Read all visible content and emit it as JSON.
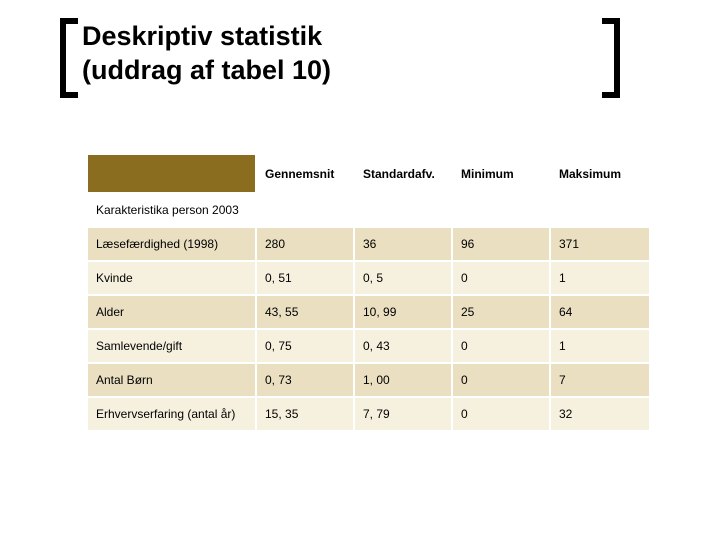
{
  "title": {
    "line1": "Deskriptiv statistik",
    "line2": "(uddrag af tabel 10)"
  },
  "table": {
    "header_first_bg": "#8a6d1e",
    "row_odd_bg": "#eadfc1",
    "row_even_bg": "#f6f0de",
    "columns": [
      "",
      "Gennemsnit",
      "Standardafv.",
      "Minimum",
      "Maksimum"
    ],
    "section_label": "Karakteristika person 2003",
    "rows": [
      {
        "label": "Læsefærdighed (1998)",
        "values": [
          "280",
          "36",
          "96",
          "371"
        ]
      },
      {
        "label": "Kvinde",
        "values": [
          "0, 51",
          "0, 5",
          "0",
          "1"
        ]
      },
      {
        "label": "Alder",
        "values": [
          "43, 55",
          "10, 99",
          "25",
          "64"
        ]
      },
      {
        "label": "Samlevende/gift",
        "values": [
          "0, 75",
          "0, 43",
          "0",
          "1"
        ]
      },
      {
        "label": "Antal Børn",
        "values": [
          "0, 73",
          "1, 00",
          "0",
          "7"
        ]
      },
      {
        "label": "Erhvervserfaring (antal år)",
        "values": [
          "15, 35",
          "7, 79",
          "0",
          "32"
        ]
      }
    ]
  }
}
